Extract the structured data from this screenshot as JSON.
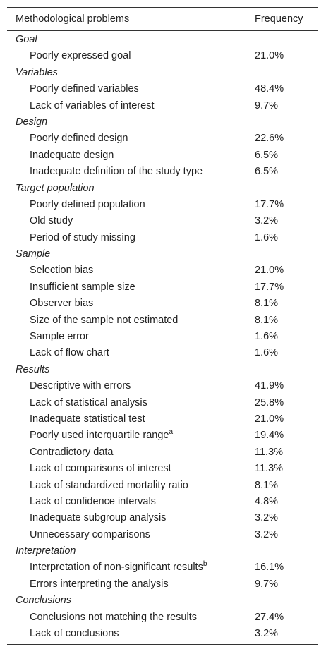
{
  "table": {
    "columns": [
      "Methodological problems",
      "Frequency"
    ],
    "groups": [
      {
        "name": "Goal",
        "rows": [
          {
            "label": "Poorly expressed goal",
            "frequency": "21.0%"
          }
        ]
      },
      {
        "name": "Variables",
        "rows": [
          {
            "label": "Poorly defined variables",
            "frequency": "48.4%"
          },
          {
            "label": "Lack of variables of interest",
            "frequency": "9.7%"
          }
        ]
      },
      {
        "name": "Design",
        "rows": [
          {
            "label": "Poorly defined design",
            "frequency": "22.6%"
          },
          {
            "label": "Inadequate design",
            "frequency": "6.5%"
          },
          {
            "label": "Inadequate definition of the study type",
            "frequency": "6.5%"
          }
        ]
      },
      {
        "name": "Target population",
        "rows": [
          {
            "label": "Poorly defined population",
            "frequency": "17.7%"
          },
          {
            "label": "Old study",
            "frequency": "3.2%"
          },
          {
            "label": "Period of study missing",
            "frequency": "1.6%"
          }
        ]
      },
      {
        "name": "Sample",
        "rows": [
          {
            "label": "Selection bias",
            "frequency": "21.0%"
          },
          {
            "label": "Insufficient sample size",
            "frequency": "17.7%"
          },
          {
            "label": "Observer bias",
            "frequency": "8.1%"
          },
          {
            "label": "Size of the sample not estimated",
            "frequency": "8.1%"
          },
          {
            "label": "Sample error",
            "frequency": "1.6%"
          },
          {
            "label": "Lack of flow chart",
            "frequency": "1.6%"
          }
        ]
      },
      {
        "name": "Results",
        "rows": [
          {
            "label": "Descriptive with errors",
            "frequency": "41.9%"
          },
          {
            "label": "Lack of statistical analysis",
            "frequency": "25.8%"
          },
          {
            "label": "Inadequate statistical test",
            "frequency": "21.0%"
          },
          {
            "label": "Poorly used interquartile range",
            "note": "a",
            "frequency": "19.4%"
          },
          {
            "label": "Contradictory data",
            "frequency": "11.3%"
          },
          {
            "label": "Lack of comparisons of interest",
            "frequency": "11.3%"
          },
          {
            "label": "Lack of standardized mortality ratio",
            "frequency": "8.1%"
          },
          {
            "label": "Lack of confidence intervals",
            "frequency": "4.8%"
          },
          {
            "label": "Inadequate subgroup analysis",
            "frequency": "3.2%"
          },
          {
            "label": "Unnecessary comparisons",
            "frequency": "3.2%"
          }
        ]
      },
      {
        "name": "Interpretation",
        "rows": [
          {
            "label": "Interpretation of non-significant results",
            "note": "b",
            "frequency": "16.1%"
          },
          {
            "label": "Errors interpreting the analysis",
            "frequency": "9.7%"
          }
        ]
      },
      {
        "name": "Conclusions",
        "rows": [
          {
            "label": "Conclusions not matching the results",
            "frequency": "27.4%"
          },
          {
            "label": "Lack of conclusions",
            "frequency": "3.2%"
          }
        ]
      }
    ]
  }
}
